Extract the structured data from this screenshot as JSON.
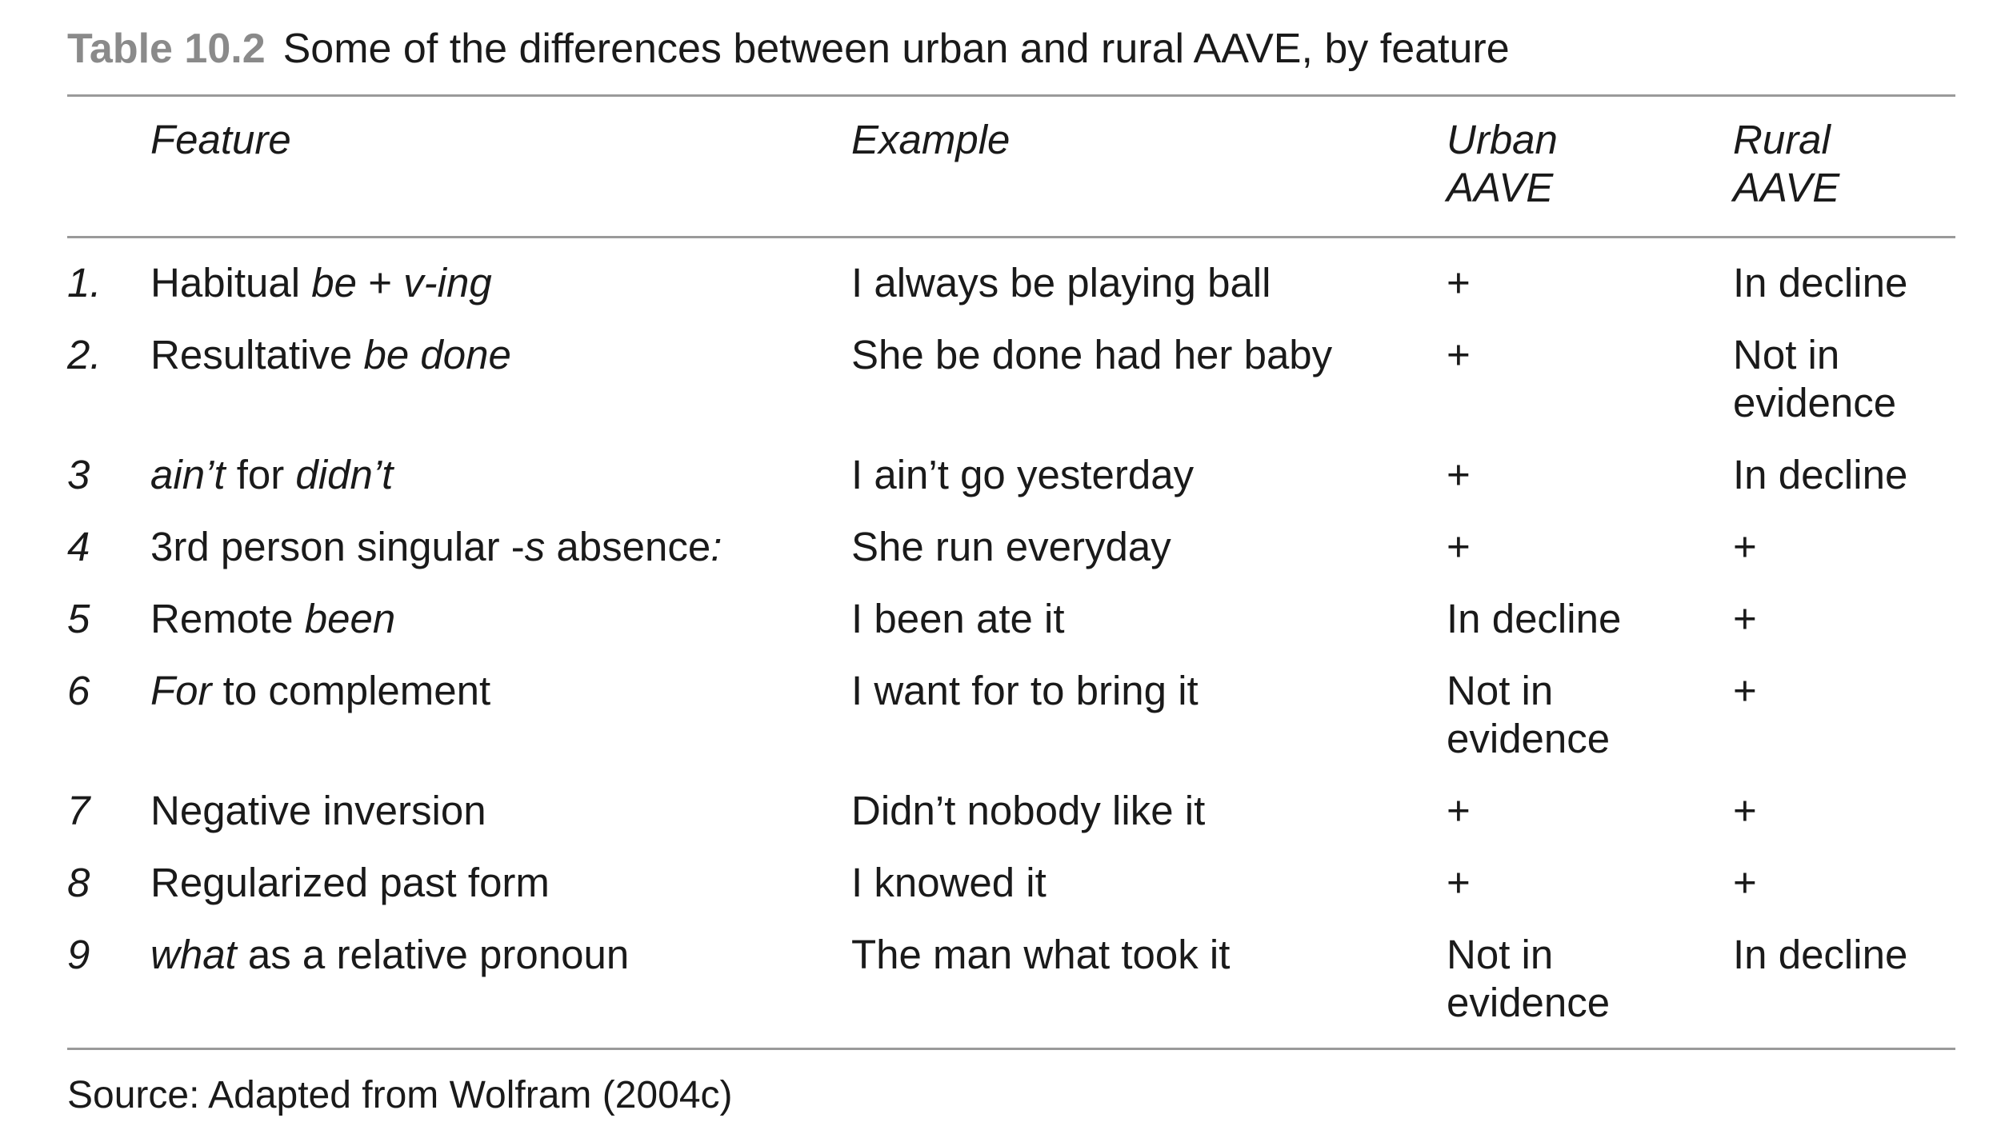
{
  "caption": {
    "label": "Table 10.2",
    "title": "Some of the differences between urban and rural AAVE, by feature"
  },
  "columns": {
    "feature": "Feature",
    "example": "Example",
    "urban_1": "Urban",
    "urban_2": "AAVE",
    "rural_1": "Rural",
    "rural_2": "AAVE"
  },
  "rows": [
    {
      "num": "1.",
      "feature": [
        {
          "t": "Habitual ",
          "i": false
        },
        {
          "t": "be",
          "i": true
        },
        {
          "t": " + ",
          "i": false
        },
        {
          "t": "v-ing",
          "i": true
        }
      ],
      "example": "I always be playing ball",
      "urban": [
        "+"
      ],
      "rural": [
        "In decline"
      ]
    },
    {
      "num": "2.",
      "feature": [
        {
          "t": "Resultative ",
          "i": false
        },
        {
          "t": "be done",
          "i": true
        }
      ],
      "example": "She be done had her baby",
      "urban": [
        "+"
      ],
      "rural": [
        "Not in",
        "evidence"
      ]
    },
    {
      "num": "3",
      "feature": [
        {
          "t": "ain’t",
          "i": true
        },
        {
          "t": " for ",
          "i": false
        },
        {
          "t": "didn’t",
          "i": true
        }
      ],
      "example": "I ain’t go yesterday",
      "urban": [
        "+"
      ],
      "rural": [
        "In decline"
      ]
    },
    {
      "num": "4",
      "feature": [
        {
          "t": "3rd person singular -",
          "i": false
        },
        {
          "t": "s",
          "i": true
        },
        {
          "t": " absence",
          "i": false
        },
        {
          "t": ":",
          "i": true
        }
      ],
      "example": "She run everyday",
      "urban": [
        "+"
      ],
      "rural": [
        "+"
      ]
    },
    {
      "num": "5",
      "feature": [
        {
          "t": "Remote ",
          "i": false
        },
        {
          "t": "been",
          "i": true
        }
      ],
      "example": "I been ate it",
      "urban": [
        "In decline"
      ],
      "rural": [
        "+"
      ]
    },
    {
      "num": "6",
      "feature": [
        {
          "t": "For",
          "i": true
        },
        {
          "t": " to complement",
          "i": false
        }
      ],
      "example": "I want for to bring it",
      "urban": [
        "Not in",
        "evidence"
      ],
      "rural": [
        "+"
      ]
    },
    {
      "num": "7",
      "feature": [
        {
          "t": "Negative inversion",
          "i": false
        }
      ],
      "example": "Didn’t nobody like it",
      "urban": [
        "+"
      ],
      "rural": [
        "+"
      ]
    },
    {
      "num": "8",
      "feature": [
        {
          "t": "Regularized past form",
          "i": false
        }
      ],
      "example": "I knowed it",
      "urban": [
        "+"
      ],
      "rural": [
        "+"
      ]
    },
    {
      "num": "9",
      "feature": [
        {
          "t": "what",
          "i": true
        },
        {
          "t": " as a relative pronoun",
          "i": false
        }
      ],
      "example": "The man what took it",
      "urban": [
        "Not in",
        "evidence"
      ],
      "rural": [
        "In decline"
      ]
    }
  ],
  "source": "Source: Adapted from Wolfram (2004c)"
}
